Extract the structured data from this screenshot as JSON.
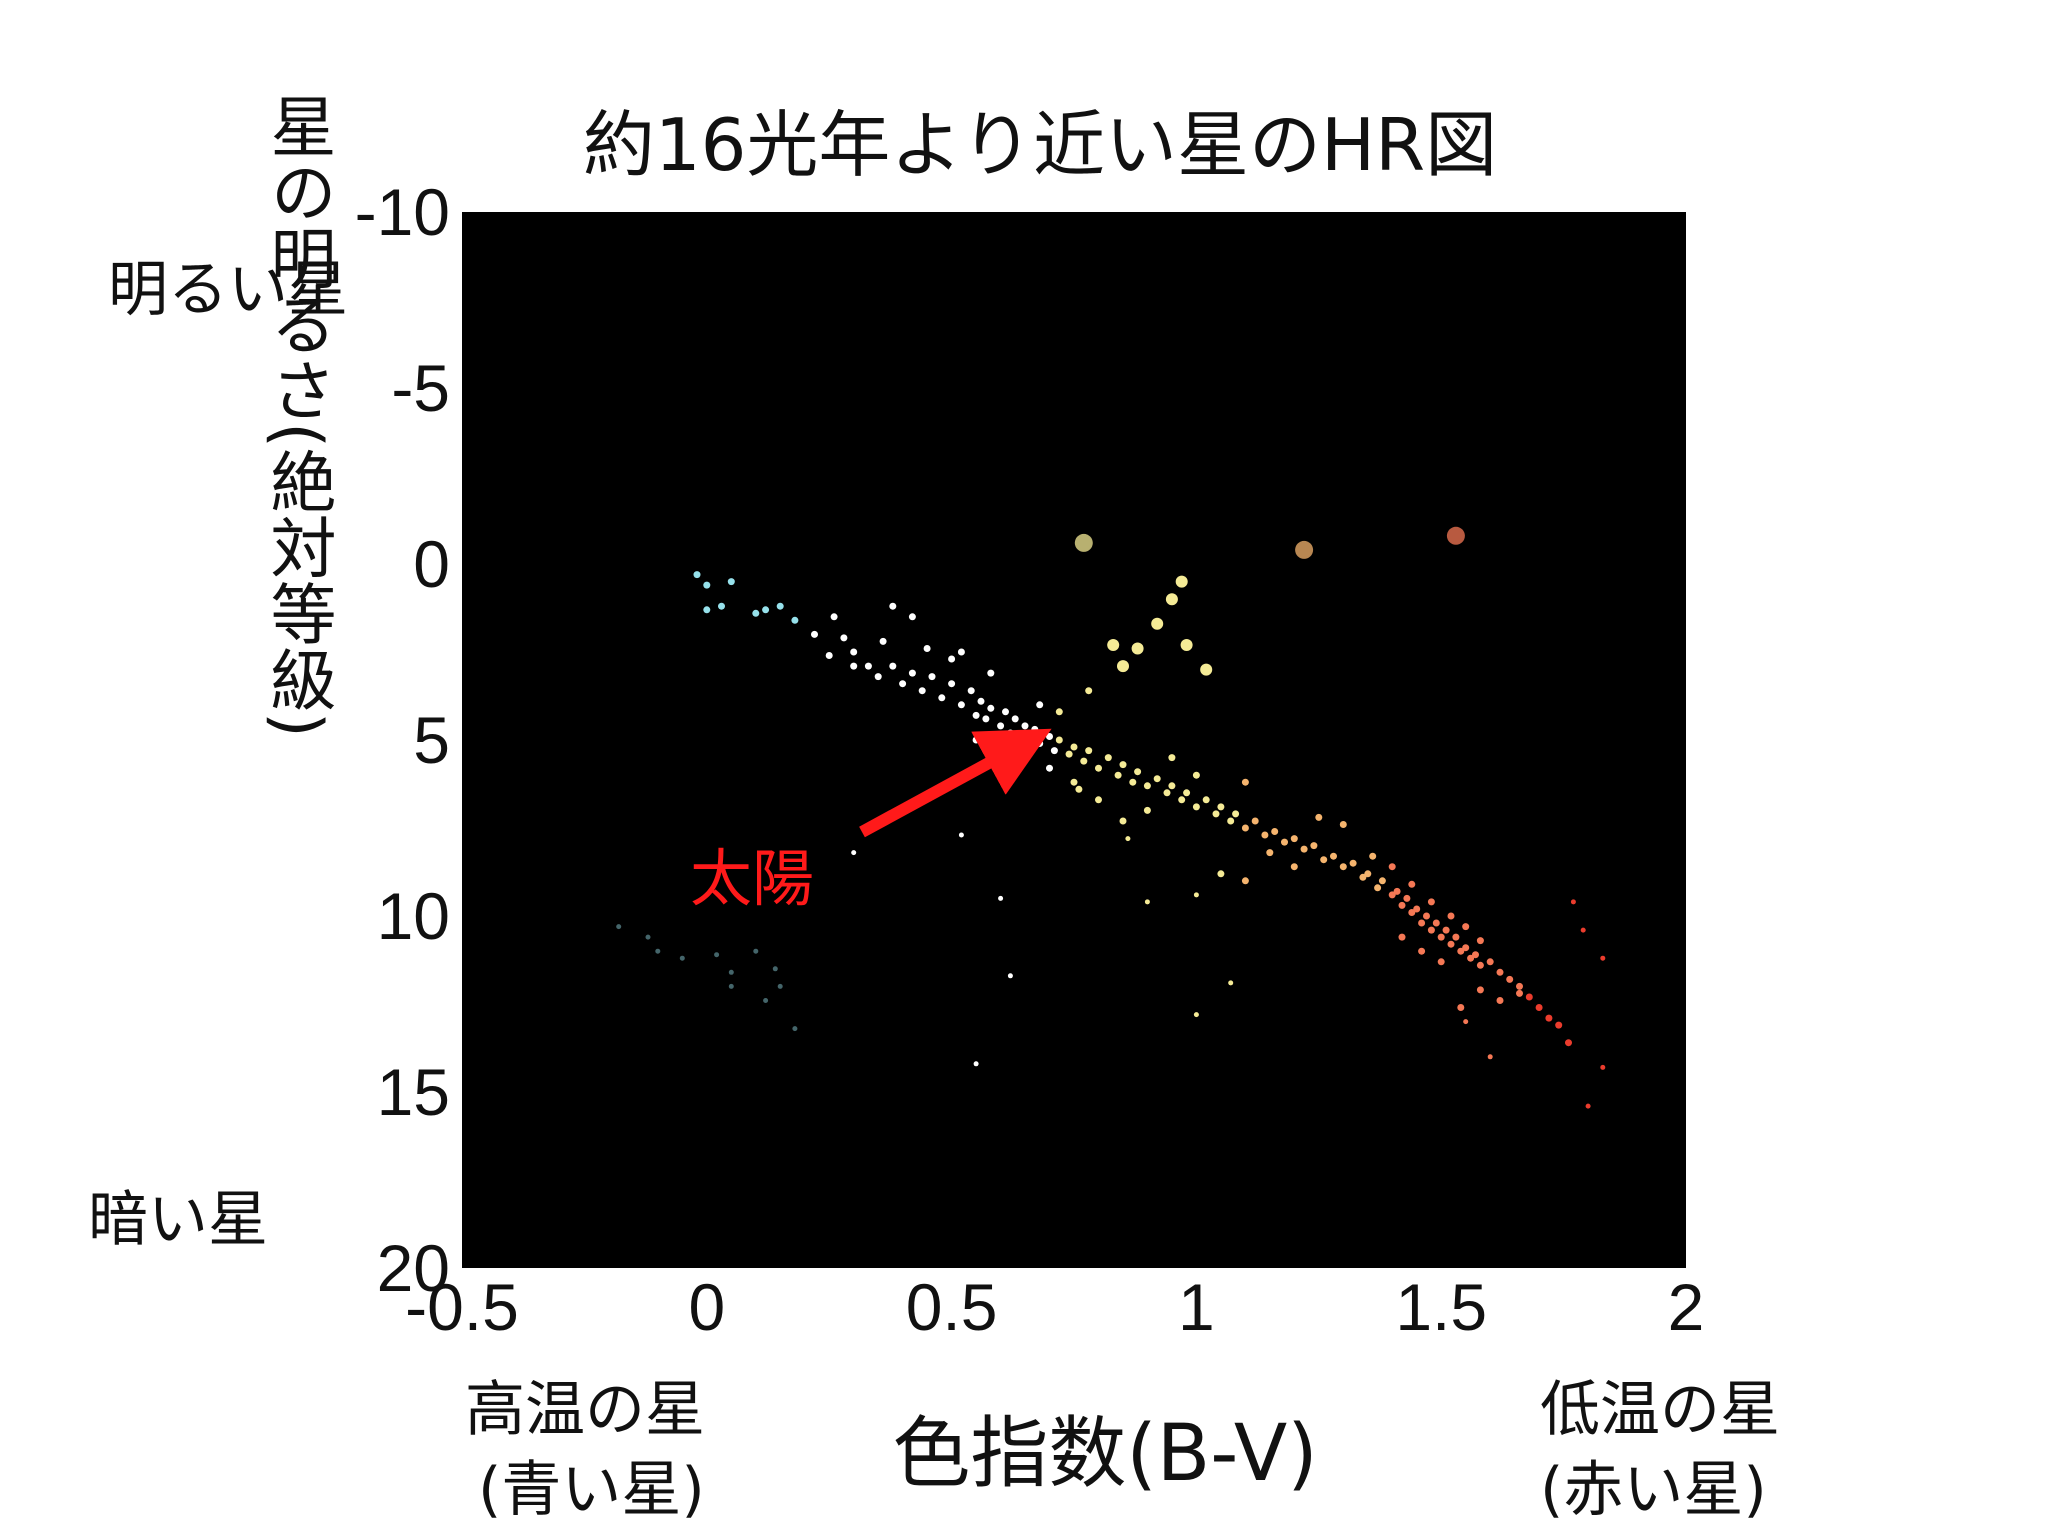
{
  "chart_data": {
    "type": "scatter",
    "title": "約16光年より近い星のHR図",
    "xlabel": "色指数(B-V)",
    "ylabel": "星の明るさ(絶対等級)",
    "xlim": [
      -0.5,
      2
    ],
    "ylim": [
      -10,
      20
    ],
    "y_inverted": true,
    "plot_background": "#000000",
    "xticks": [
      "-0.5",
      "0",
      "0.5",
      "1",
      "1.5",
      "2"
    ],
    "yticks": [
      "-10",
      "-5",
      "0",
      "5",
      "10",
      "15",
      "20"
    ],
    "annotations": {
      "bright_star": "明るい星",
      "dark_star": "暗い星",
      "hot_star": "高温の星",
      "hot_star_sub": "(青い星)",
      "cool_star": "低温の星",
      "cool_star_sub": "(赤い星)",
      "sun_label": "太陽",
      "sun_label_color": "#ff1a1a",
      "sun_point": {
        "x": 0.65,
        "y": 4.8
      }
    },
    "series": [
      {
        "points": [
          [
            -0.02,
            0.3
          ],
          [
            0.0,
            0.6
          ],
          [
            0.05,
            0.5
          ],
          [
            0.0,
            1.3
          ],
          [
            0.03,
            1.2
          ],
          [
            0.1,
            1.4
          ],
          [
            0.12,
            1.3
          ],
          [
            0.15,
            1.2
          ],
          [
            0.18,
            1.6
          ],
          [
            0.22,
            2.0
          ],
          [
            0.26,
            1.5
          ],
          [
            0.28,
            2.1
          ],
          [
            0.3,
            2.5
          ],
          [
            0.33,
            2.9
          ],
          [
            0.36,
            2.2
          ],
          [
            0.38,
            2.9
          ],
          [
            0.4,
            3.4
          ],
          [
            0.42,
            3.1
          ],
          [
            0.44,
            3.6
          ],
          [
            0.46,
            3.2
          ],
          [
            0.48,
            3.8
          ],
          [
            0.5,
            3.4
          ],
          [
            0.52,
            4.0
          ],
          [
            0.54,
            3.6
          ],
          [
            0.55,
            4.3
          ],
          [
            0.56,
            3.9
          ],
          [
            0.57,
            4.4
          ],
          [
            0.58,
            4.1
          ],
          [
            0.6,
            4.6
          ],
          [
            0.61,
            4.2
          ],
          [
            0.62,
            4.8
          ],
          [
            0.63,
            4.4
          ],
          [
            0.64,
            4.9
          ],
          [
            0.65,
            4.6
          ],
          [
            0.66,
            5.0
          ],
          [
            0.67,
            4.7
          ],
          [
            0.68,
            5.1
          ],
          [
            0.7,
            4.9
          ],
          [
            0.71,
            5.3
          ],
          [
            0.72,
            5.0
          ],
          [
            0.74,
            5.4
          ],
          [
            0.75,
            5.2
          ],
          [
            0.77,
            5.6
          ],
          [
            0.78,
            5.3
          ],
          [
            0.8,
            5.8
          ],
          [
            0.82,
            5.5
          ],
          [
            0.84,
            6.0
          ],
          [
            0.85,
            5.7
          ],
          [
            0.87,
            6.2
          ],
          [
            0.88,
            5.9
          ],
          [
            0.9,
            6.3
          ],
          [
            0.92,
            6.1
          ],
          [
            0.94,
            6.5
          ],
          [
            0.95,
            6.3
          ],
          [
            0.97,
            6.7
          ],
          [
            0.98,
            6.5
          ],
          [
            1.0,
            6.9
          ],
          [
            1.02,
            6.7
          ],
          [
            1.04,
            7.1
          ],
          [
            1.05,
            6.9
          ],
          [
            1.07,
            7.3
          ],
          [
            1.08,
            7.1
          ],
          [
            1.1,
            7.5
          ],
          [
            1.12,
            7.3
          ],
          [
            1.14,
            7.7
          ],
          [
            1.16,
            7.6
          ],
          [
            1.18,
            7.9
          ],
          [
            1.2,
            7.8
          ],
          [
            1.22,
            8.1
          ],
          [
            1.24,
            8.0
          ],
          [
            1.26,
            8.4
          ],
          [
            1.28,
            8.3
          ],
          [
            1.3,
            8.6
          ],
          [
            1.32,
            8.5
          ],
          [
            1.34,
            8.9
          ],
          [
            1.35,
            8.8
          ],
          [
            1.37,
            9.2
          ],
          [
            1.38,
            9.0
          ],
          [
            1.4,
            9.4
          ],
          [
            1.41,
            9.3
          ],
          [
            1.42,
            9.7
          ],
          [
            1.43,
            9.5
          ],
          [
            1.44,
            9.9
          ],
          [
            1.45,
            9.8
          ],
          [
            1.46,
            10.2
          ],
          [
            1.47,
            10.0
          ],
          [
            1.48,
            10.4
          ],
          [
            1.49,
            10.2
          ],
          [
            1.5,
            10.6
          ],
          [
            1.51,
            10.4
          ],
          [
            1.52,
            10.8
          ],
          [
            1.53,
            10.6
          ],
          [
            1.54,
            11.0
          ],
          [
            1.55,
            10.9
          ],
          [
            1.56,
            11.2
          ],
          [
            1.57,
            11.1
          ],
          [
            1.58,
            11.4
          ],
          [
            1.6,
            11.3
          ],
          [
            1.62,
            11.6
          ],
          [
            1.64,
            11.8
          ],
          [
            1.66,
            12.0
          ],
          [
            1.68,
            12.3
          ],
          [
            1.7,
            12.6
          ],
          [
            1.72,
            12.9
          ],
          [
            1.74,
            13.1
          ],
          [
            1.36,
            8.3
          ],
          [
            1.4,
            8.6
          ],
          [
            1.44,
            9.1
          ],
          [
            1.48,
            9.6
          ],
          [
            1.52,
            10.0
          ],
          [
            1.55,
            10.3
          ],
          [
            1.58,
            10.7
          ],
          [
            1.5,
            11.3
          ],
          [
            1.46,
            11.0
          ],
          [
            1.42,
            10.6
          ],
          [
            1.3,
            7.4
          ],
          [
            1.25,
            7.2
          ],
          [
            1.1,
            6.2
          ],
          [
            1.0,
            6.0
          ],
          [
            0.95,
            5.5
          ],
          [
            0.9,
            7.0
          ],
          [
            0.85,
            7.3
          ],
          [
            0.8,
            6.7
          ],
          [
            0.75,
            6.2
          ],
          [
            0.72,
            4.2
          ],
          [
            0.78,
            3.6
          ],
          [
            0.68,
            4.0
          ],
          [
            0.58,
            3.1
          ],
          [
            0.5,
            2.7
          ],
          [
            0.45,
            2.4
          ],
          [
            0.38,
            1.2
          ],
          [
            0.42,
            1.5
          ],
          [
            0.52,
            2.5
          ],
          [
            0.35,
            3.2
          ],
          [
            0.3,
            2.9
          ],
          [
            0.25,
            2.6
          ],
          [
            0.6,
            5.4
          ],
          [
            0.55,
            5.0
          ],
          [
            0.7,
            5.8
          ],
          [
            0.76,
            6.4
          ],
          [
            1.62,
            12.4
          ],
          [
            1.58,
            12.1
          ],
          [
            1.54,
            12.6
          ],
          [
            1.66,
            12.2
          ],
          [
            1.76,
            13.6
          ],
          [
            1.2,
            8.6
          ],
          [
            1.15,
            8.2
          ],
          [
            1.1,
            9.0
          ],
          [
            1.05,
            8.8
          ]
        ]
      },
      {
        "points": [
          [
            0.77,
            -0.6
          ],
          [
            1.22,
            -0.4
          ],
          [
            1.53,
            -0.8
          ],
          [
            0.97,
            0.5
          ],
          [
            0.95,
            1.0
          ],
          [
            0.92,
            1.7
          ],
          [
            0.83,
            2.3
          ],
          [
            0.88,
            2.4
          ],
          [
            0.98,
            2.3
          ],
          [
            0.85,
            2.9
          ],
          [
            1.02,
            3.0
          ]
        ]
      },
      {
        "points": [
          [
            -0.18,
            10.3
          ],
          [
            -0.12,
            10.6
          ],
          [
            -0.1,
            11.0
          ],
          [
            -0.05,
            11.2
          ],
          [
            0.02,
            11.1
          ],
          [
            0.05,
            11.6
          ],
          [
            0.1,
            11.0
          ],
          [
            0.14,
            11.5
          ],
          [
            0.15,
            12.0
          ],
          [
            0.12,
            12.4
          ],
          [
            0.18,
            13.2
          ],
          [
            0.05,
            12.0
          ],
          [
            0.3,
            8.2
          ],
          [
            0.52,
            7.7
          ],
          [
            0.6,
            9.5
          ],
          [
            0.55,
            14.2
          ],
          [
            0.62,
            11.7
          ],
          [
            0.9,
            9.6
          ],
          [
            1.0,
            9.4
          ],
          [
            1.07,
            11.9
          ],
          [
            1.0,
            12.8
          ],
          [
            0.86,
            7.8
          ],
          [
            1.55,
            13.0
          ],
          [
            1.6,
            14.0
          ],
          [
            1.77,
            9.6
          ],
          [
            1.79,
            10.4
          ],
          [
            1.83,
            11.2
          ],
          [
            1.83,
            14.3
          ],
          [
            1.8,
            15.4
          ]
        ]
      }
    ]
  }
}
